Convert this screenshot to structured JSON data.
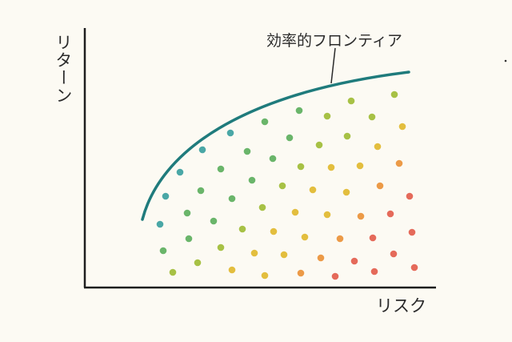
{
  "labels": {
    "y_axis": "リターン",
    "x_axis": "リスク",
    "frontier": "効率的フロンティア"
  },
  "colors": {
    "background": "#fcfaf3",
    "axis": "#1e1e1e",
    "frontier_curve": "#1f7b7c",
    "dot_palette": [
      "#3e93b0",
      "#4aa7a6",
      "#6ab56a",
      "#a7c145",
      "#e3be3e",
      "#ec9a47",
      "#e56a5a"
    ]
  }
}
